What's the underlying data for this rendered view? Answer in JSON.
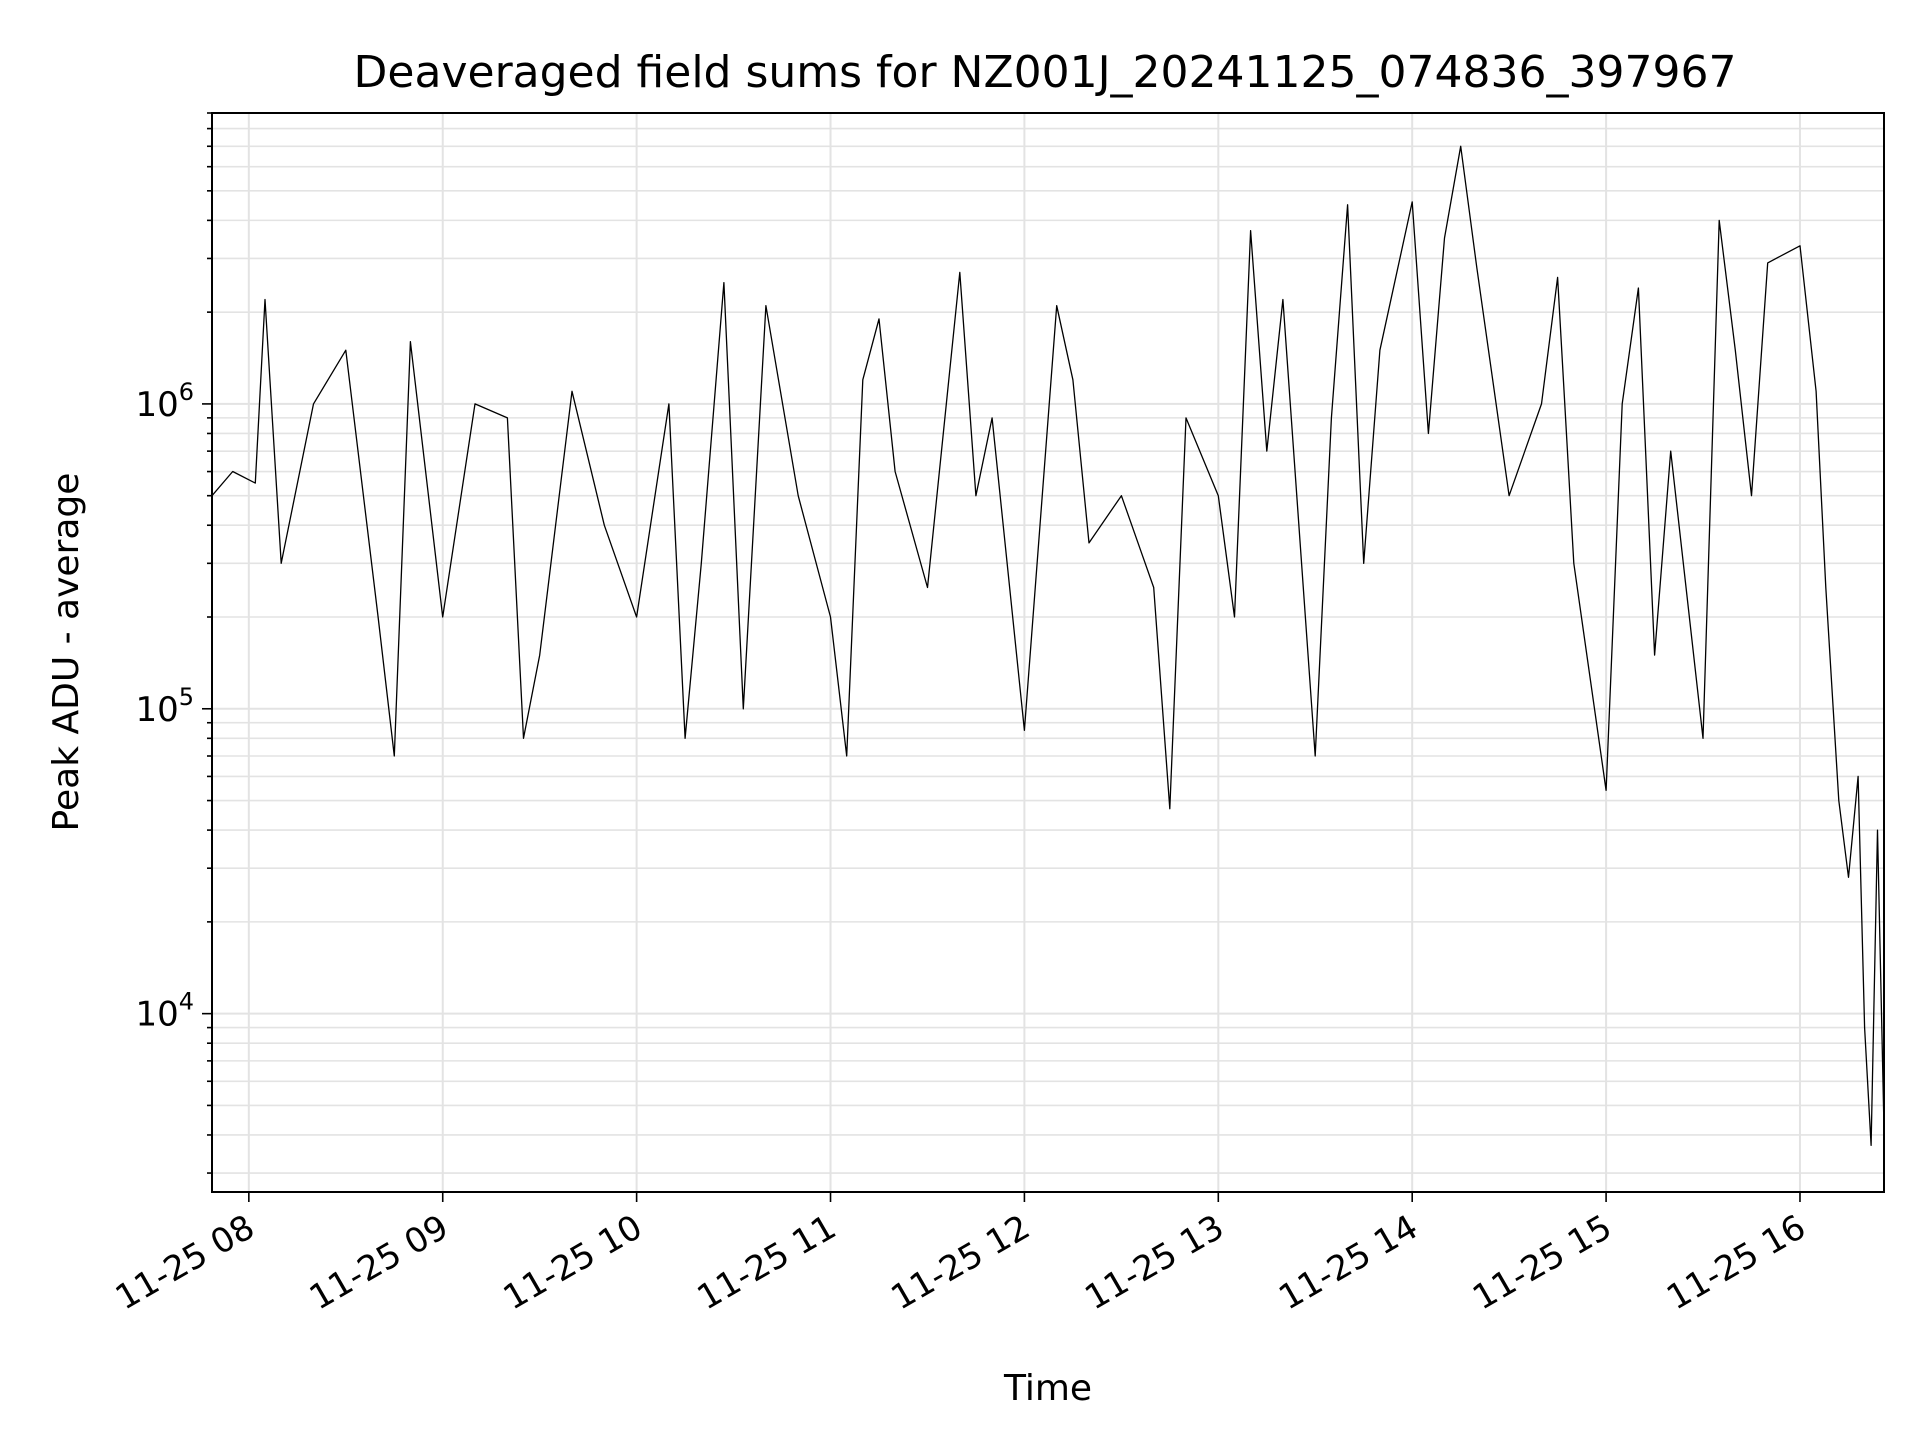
{
  "chart_data": {
    "type": "line",
    "title": "Deaveraged field sums for NZ001J_20241125_074836_397967",
    "xlabel": "Time",
    "ylabel": "Peak ADU - average",
    "x_axis": {
      "type": "time",
      "range": [
        "2024-11-25T07:48:36",
        "2024-11-25T16:26:00"
      ],
      "ticks": [
        "2024-11-25T08:00",
        "2024-11-25T09:00",
        "2024-11-25T10:00",
        "2024-11-25T11:00",
        "2024-11-25T12:00",
        "2024-11-25T13:00",
        "2024-11-25T14:00",
        "2024-11-25T15:00",
        "2024-11-25T16:00"
      ],
      "tick_labels": [
        "11-25 08",
        "11-25 09",
        "11-25 10",
        "11-25 11",
        "11-25 12",
        "11-25 13",
        "11-25 14",
        "11-25 15",
        "11-25 16"
      ]
    },
    "y_axis": {
      "scale": "log",
      "range": [
        2600,
        9000000
      ],
      "ticks": [
        10000,
        100000,
        1000000
      ],
      "tick_labels": [
        {
          "base": "10",
          "exp": "4"
        },
        {
          "base": "10",
          "exp": "5"
        },
        {
          "base": "10",
          "exp": "6"
        }
      ]
    },
    "grid": true,
    "line_color": "#000000",
    "series": [
      {
        "x": [
          "2024-11-25T07:48:36",
          "2024-11-25T07:55",
          "2024-11-25T08:02",
          "2024-11-25T08:05",
          "2024-11-25T08:10",
          "2024-11-25T08:20",
          "2024-11-25T08:30",
          "2024-11-25T08:40",
          "2024-11-25T08:45",
          "2024-11-25T08:50",
          "2024-11-25T09:00",
          "2024-11-25T09:10",
          "2024-11-25T09:20",
          "2024-11-25T09:25",
          "2024-11-25T09:30",
          "2024-11-25T09:40",
          "2024-11-25T09:50",
          "2024-11-25T10:00",
          "2024-11-25T10:10",
          "2024-11-25T10:15",
          "2024-11-25T10:20",
          "2024-11-25T10:27",
          "2024-11-25T10:33",
          "2024-11-25T10:40",
          "2024-11-25T10:50",
          "2024-11-25T11:00",
          "2024-11-25T11:05",
          "2024-11-25T11:10",
          "2024-11-25T11:15",
          "2024-11-25T11:20",
          "2024-11-25T11:30",
          "2024-11-25T11:40",
          "2024-11-25T11:45",
          "2024-11-25T11:50",
          "2024-11-25T12:00",
          "2024-11-25T12:10",
          "2024-11-25T12:15",
          "2024-11-25T12:20",
          "2024-11-25T12:30",
          "2024-11-25T12:40",
          "2024-11-25T12:45",
          "2024-11-25T12:50",
          "2024-11-25T13:00",
          "2024-11-25T13:05",
          "2024-11-25T13:10",
          "2024-11-25T13:15",
          "2024-11-25T13:20",
          "2024-11-25T13:30",
          "2024-11-25T13:35",
          "2024-11-25T13:40",
          "2024-11-25T13:45",
          "2024-11-25T13:50",
          "2024-11-25T14:00",
          "2024-11-25T14:05",
          "2024-11-25T14:10",
          "2024-11-25T14:15",
          "2024-11-25T14:20",
          "2024-11-25T14:30",
          "2024-11-25T14:40",
          "2024-11-25T14:45",
          "2024-11-25T14:50",
          "2024-11-25T15:00",
          "2024-11-25T15:05",
          "2024-11-25T15:10",
          "2024-11-25T15:15",
          "2024-11-25T15:20",
          "2024-11-25T15:30",
          "2024-11-25T15:35",
          "2024-11-25T15:40",
          "2024-11-25T15:45",
          "2024-11-25T15:50",
          "2024-11-25T16:00",
          "2024-11-25T16:05",
          "2024-11-25T16:08",
          "2024-11-25T16:12",
          "2024-11-25T16:15",
          "2024-11-25T16:18",
          "2024-11-25T16:20",
          "2024-11-25T16:22",
          "2024-11-25T16:24",
          "2024-11-25T16:26"
        ],
        "y": [
          500000,
          600000,
          550000,
          2200000,
          300000,
          1000000,
          1500000,
          200000,
          70000,
          1600000,
          200000,
          1000000,
          900000,
          80000,
          150000,
          1100000,
          400000,
          200000,
          1000000,
          80000,
          300000,
          2500000,
          100000,
          2100000,
          500000,
          200000,
          70000,
          1200000,
          1900000,
          600000,
          250000,
          2700000,
          500000,
          900000,
          85000,
          2100000,
          1200000,
          350000,
          500000,
          250000,
          47000,
          900000,
          500000,
          200000,
          3700000,
          700000,
          2200000,
          70000,
          900000,
          4500000,
          300000,
          1500000,
          4600000,
          800000,
          3500000,
          7000000,
          2800000,
          500000,
          1000000,
          2600000,
          300000,
          54000,
          1000000,
          2400000,
          150000,
          700000,
          80000,
          4000000,
          1500000,
          500000,
          2900000,
          3300000,
          1100000,
          250000,
          50000,
          28000,
          60000,
          9000,
          3700,
          40000,
          4200
        ]
      }
    ]
  }
}
